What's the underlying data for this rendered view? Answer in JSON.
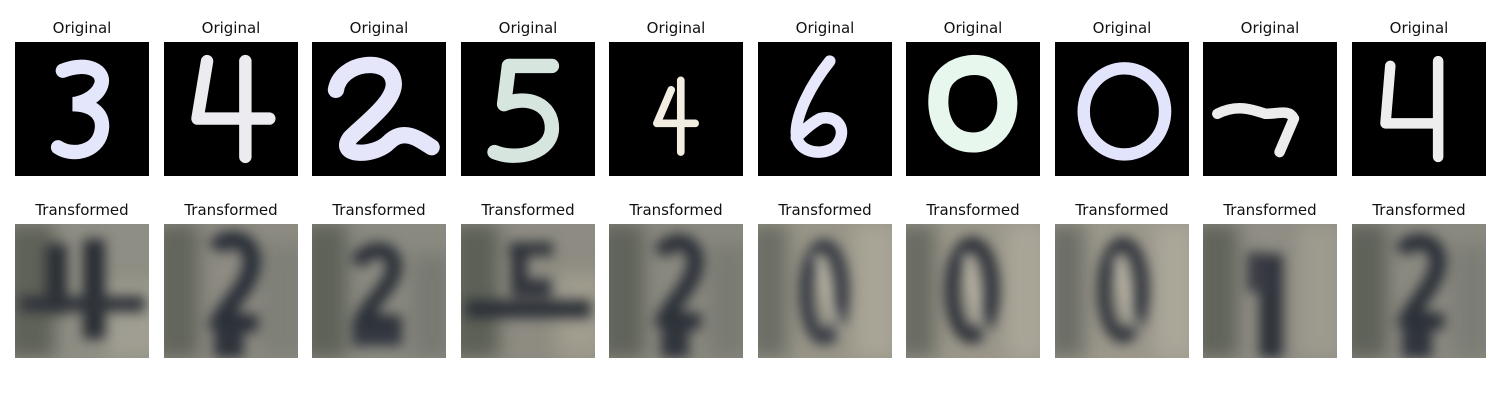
{
  "panels": [
    {
      "title": "Original",
      "digit": "3",
      "color": "#e4e6fb",
      "transformed_title": "Transformed",
      "transformed_depicts": "4"
    },
    {
      "title": "Original",
      "digit": "4",
      "color": "#ececf0",
      "transformed_title": "Transformed",
      "transformed_depicts": "2"
    },
    {
      "title": "Original",
      "digit": "2",
      "color": "#e6e6fb",
      "transformed_title": "Transformed",
      "transformed_depicts": "2"
    },
    {
      "title": "Original",
      "digit": "5",
      "color": "#d6e6de",
      "transformed_title": "Transformed",
      "transformed_depicts": "5"
    },
    {
      "title": "Original",
      "digit": "4",
      "color": "#f3ece0",
      "transformed_title": "Transformed",
      "transformed_depicts": "2"
    },
    {
      "title": "Original",
      "digit": "6",
      "color": "#e7e8fb",
      "transformed_title": "Transformed",
      "transformed_depicts": "0"
    },
    {
      "title": "Original",
      "digit": "0",
      "color": "#e8f7ee",
      "transformed_title": "Transformed",
      "transformed_depicts": "0"
    },
    {
      "title": "Original",
      "digit": "0",
      "color": "#e2e4fb",
      "transformed_title": "Transformed",
      "transformed_depicts": "0"
    },
    {
      "title": "Original",
      "digit": "7",
      "color": "#ececec",
      "transformed_title": "Transformed",
      "transformed_depicts": "1"
    },
    {
      "title": "Original",
      "digit": "4",
      "color": "#eeeeee",
      "transformed_title": "Transformed",
      "transformed_depicts": "2"
    }
  ]
}
